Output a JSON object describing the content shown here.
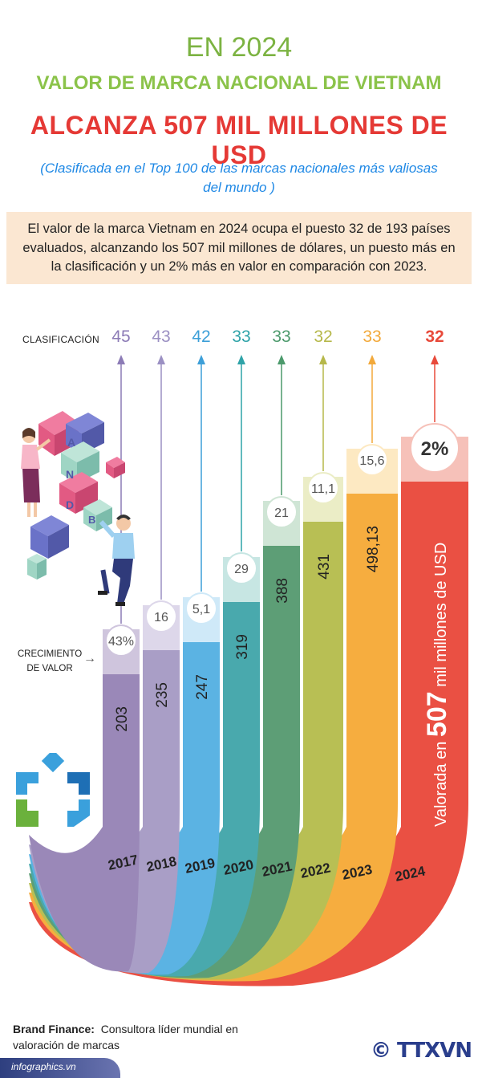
{
  "header": {
    "year_line": "EN 2024",
    "line2": "VALOR DE MARCA NACIONAL DE VIETNAM",
    "line3": "ALCANZA 507 MIL MILLONES DE USD",
    "note": "(Clasificada en el Top 100 de las marcas nacionales más valiosas del mundo )"
  },
  "summary": "El valor de la marca Vietnam en 2024 ocupa el puesto 32 de 193 países evaluados, alcanzando los 507 mil millones de dólares, un puesto más en la clasificación y un 2% más en valor en comparación con 2023.",
  "labels": {
    "ranking": "CLASIFICACIÓN",
    "growth": "CRECIMIENTO DE VALOR"
  },
  "highlight": {
    "text_prefix": "Valorada en",
    "text_value": "507",
    "text_suffix": "mil millones de USD"
  },
  "source": {
    "name": "Brand Finance:",
    "desc": "Consultora líder mundial en valoración de marcas"
  },
  "footer": {
    "url": "infographics.vn",
    "agency": "© TTXVN"
  },
  "chart_data": {
    "type": "bar",
    "categories": [
      "2017",
      "2018",
      "2019",
      "2020",
      "2021",
      "2022",
      "2023",
      "2024"
    ],
    "value_labels": [
      "203",
      "235",
      "247",
      "319",
      "388",
      "431",
      "498,13",
      ""
    ],
    "growth_labels": [
      "43%",
      "16",
      "5,1",
      "29",
      "21",
      "11,1",
      "15,6",
      "2%"
    ],
    "ranking": [
      45,
      43,
      42,
      33,
      33,
      32,
      33,
      32
    ],
    "colors": [
      "#9a88b8",
      "#a99ec6",
      "#5bb3e3",
      "#49a9ad",
      "#5d9e76",
      "#b8bf54",
      "#f6ad3f",
      "#ea5043"
    ],
    "light_colors": [
      "#cfc5dd",
      "#ddd7ea",
      "#cfe9f8",
      "#c7e6e3",
      "#cfe5d5",
      "#ebedc6",
      "#fde9c2",
      "#f6c1b9"
    ],
    "rank_colors": [
      "#8c7bb6",
      "#9b90c3",
      "#3d9fd8",
      "#2fa3a8",
      "#4c9a6c",
      "#b6b84a",
      "#f2a93b",
      "#e84a3b"
    ]
  }
}
